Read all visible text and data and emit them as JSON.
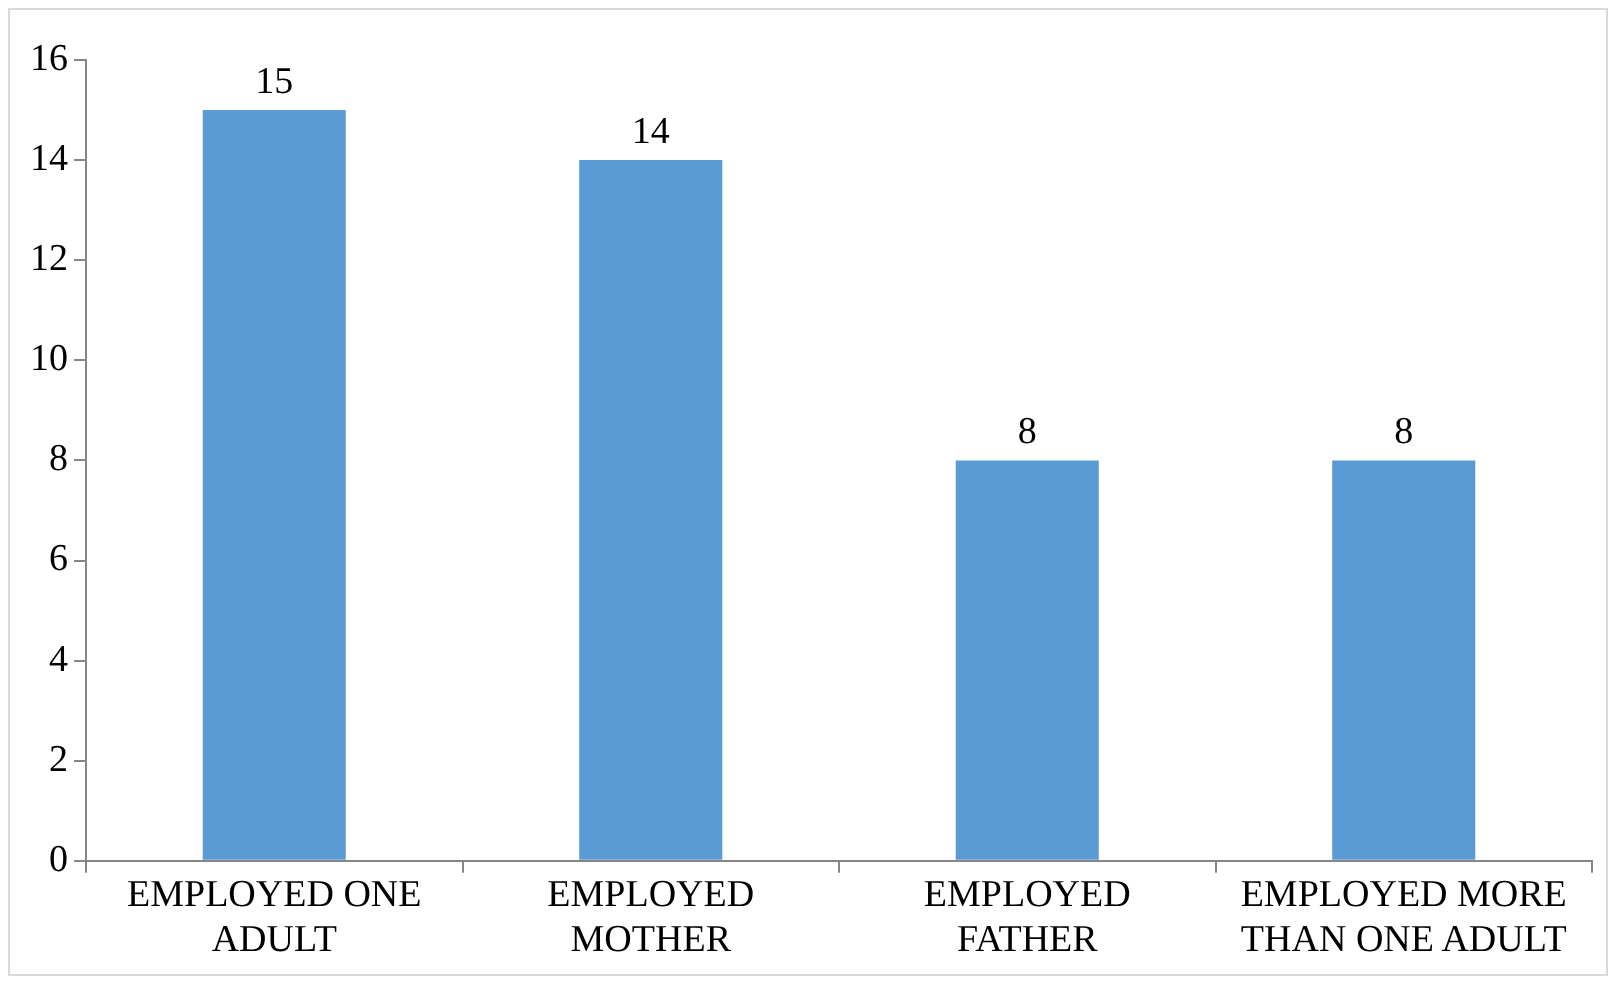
{
  "chart_data": {
    "type": "bar",
    "categories": [
      "EMPLOYED ONE ADULT",
      "EMPLOYED MOTHER",
      "EMPLOYED FATHER",
      "EMPLOYED MORE THAN ONE ADULT"
    ],
    "values": [
      15,
      14,
      8,
      8
    ],
    "color": "#5b9bd5",
    "ylim": [
      0,
      16
    ],
    "yticks": [
      0,
      2,
      4,
      6,
      8,
      10,
      12,
      14,
      16
    ],
    "grid": false,
    "legend": false,
    "data_labels": true
  }
}
